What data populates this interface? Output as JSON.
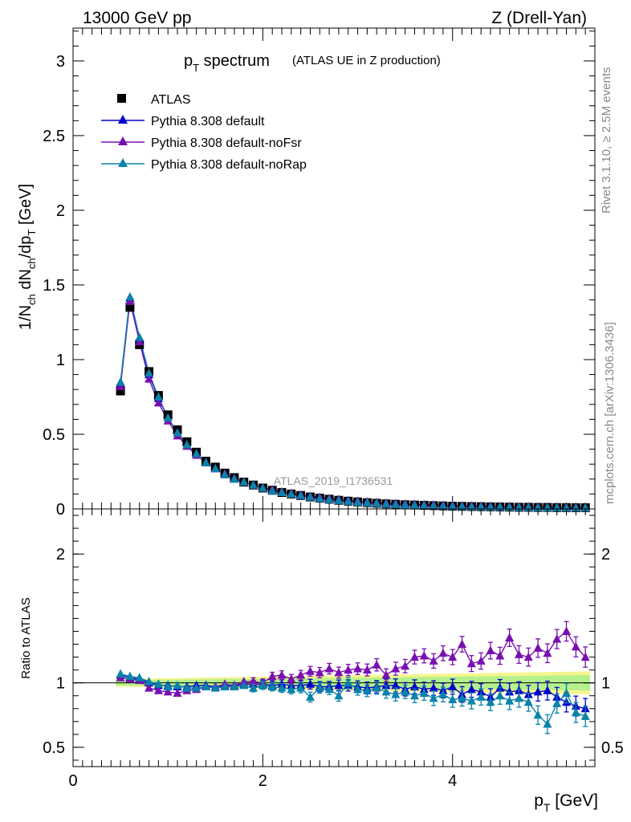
{
  "header": {
    "left": "13000 GeV pp",
    "right": "Z (Drell-Yan)"
  },
  "title": {
    "main": "p",
    "main_sub": "T",
    "main_rest": " spectrum",
    "small": "(ATLAS UE in Z production)"
  },
  "side_labels": {
    "top": "Rivet 3.1.10, ≥ 2.5M events",
    "bottom": "mcplots.cern.ch [arXiv:1306.3436]"
  },
  "watermark": "ATLAS_2019_I1736531",
  "colors": {
    "atlas": "#000000",
    "default": "#0000cc",
    "noFsr": "#7a0fb0",
    "noRap": "#0a82aa",
    "band_inner": "#b4f08c",
    "band_outer": "#f5f58c"
  },
  "chart_data": [
    {
      "type": "scatter",
      "ylabel": "1/N_ch dN_ch/dp_T [GeV]",
      "xlim": [
        0,
        5.5
      ],
      "ylim": [
        0,
        3.22
      ],
      "y_ticks": [
        0,
        0.5,
        1,
        1.5,
        2,
        2.5,
        3
      ],
      "legend_position": "top-left",
      "x": [
        0.5,
        0.6,
        0.7,
        0.8,
        0.9,
        1.0,
        1.1,
        1.2,
        1.3,
        1.4,
        1.5,
        1.6,
        1.7,
        1.8,
        1.9,
        2.0,
        2.1,
        2.2,
        2.3,
        2.4,
        2.5,
        2.6,
        2.7,
        2.8,
        2.9,
        3.0,
        3.1,
        3.2,
        3.3,
        3.4,
        3.5,
        3.6,
        3.7,
        3.8,
        3.9,
        4.0,
        4.1,
        4.2,
        4.3,
        4.4,
        4.5,
        4.6,
        4.7,
        4.8,
        4.9,
        5.0,
        5.1,
        5.2,
        5.3,
        5.4
      ],
      "series": [
        {
          "name": "ATLAS",
          "marker": "square",
          "values": [
            0.79,
            1.35,
            1.1,
            0.92,
            0.76,
            0.63,
            0.53,
            0.45,
            0.38,
            0.32,
            0.28,
            0.24,
            0.21,
            0.18,
            0.16,
            0.14,
            0.125,
            0.11,
            0.1,
            0.09,
            0.08,
            0.072,
            0.065,
            0.058,
            0.052,
            0.047,
            0.042,
            0.038,
            0.034,
            0.031,
            0.028,
            0.026,
            0.024,
            0.022,
            0.02,
            0.018,
            0.017,
            0.016,
            0.015,
            0.014,
            0.013,
            0.012,
            0.011,
            0.011,
            0.01,
            0.01,
            0.009,
            0.009,
            0.008,
            0.008
          ]
        },
        {
          "name": "Pythia 8.308 default",
          "marker": "triangle",
          "values": [
            0.84,
            1.41,
            1.14,
            0.9,
            0.74,
            0.61,
            0.51,
            0.43,
            0.37,
            0.31,
            0.27,
            0.23,
            0.2,
            0.18,
            0.16,
            0.14,
            0.12,
            0.11,
            0.1,
            0.09,
            0.08,
            0.07,
            0.063,
            0.057,
            0.051,
            0.046,
            0.041,
            0.037,
            0.033,
            0.03,
            0.027,
            0.025,
            0.023,
            0.021,
            0.019,
            0.017,
            0.016,
            0.015,
            0.014,
            0.013,
            0.012,
            0.011,
            0.01,
            0.01,
            0.009,
            0.009,
            0.008,
            0.008,
            0.007,
            0.007
          ]
        },
        {
          "name": "Pythia 8.308 default-noFsr",
          "marker": "triangle",
          "values": [
            0.82,
            1.39,
            1.12,
            0.87,
            0.71,
            0.59,
            0.49,
            0.42,
            0.36,
            0.31,
            0.27,
            0.235,
            0.205,
            0.18,
            0.16,
            0.14,
            0.13,
            0.115,
            0.105,
            0.095,
            0.085,
            0.078,
            0.07,
            0.063,
            0.057,
            0.052,
            0.047,
            0.043,
            0.039,
            0.036,
            0.033,
            0.031,
            0.029,
            0.027,
            0.025,
            0.023,
            0.021,
            0.02,
            0.019,
            0.018,
            0.017,
            0.016,
            0.015,
            0.014,
            0.013,
            0.013,
            0.012,
            0.011,
            0.011,
            0.01
          ]
        },
        {
          "name": "Pythia 8.308 default-noRap",
          "marker": "triangle",
          "values": [
            0.85,
            1.42,
            1.15,
            0.91,
            0.75,
            0.61,
            0.51,
            0.43,
            0.37,
            0.31,
            0.27,
            0.23,
            0.2,
            0.18,
            0.16,
            0.14,
            0.12,
            0.11,
            0.1,
            0.09,
            0.08,
            0.07,
            0.063,
            0.057,
            0.051,
            0.046,
            0.041,
            0.037,
            0.033,
            0.03,
            0.027,
            0.025,
            0.023,
            0.021,
            0.019,
            0.017,
            0.016,
            0.015,
            0.014,
            0.013,
            0.012,
            0.011,
            0.01,
            0.01,
            0.009,
            0.008,
            0.008,
            0.008,
            0.007,
            0.007
          ]
        }
      ]
    },
    {
      "type": "line",
      "xlabel": "p_T [GeV]",
      "ylabel": "Ratio to ATLAS",
      "xlim": [
        0,
        5.5
      ],
      "ylim": [
        0.35,
        2.35
      ],
      "x_ticks": [
        0,
        2,
        4
      ],
      "y_ticks": [
        0.5,
        1,
        2
      ],
      "x": [
        0.5,
        0.6,
        0.7,
        0.8,
        0.9,
        1.0,
        1.1,
        1.2,
        1.3,
        1.4,
        1.5,
        1.6,
        1.7,
        1.8,
        1.9,
        2.0,
        2.1,
        2.2,
        2.3,
        2.4,
        2.5,
        2.6,
        2.7,
        2.8,
        2.9,
        3.0,
        3.1,
        3.2,
        3.3,
        3.4,
        3.5,
        3.6,
        3.7,
        3.8,
        3.9,
        4.0,
        4.1,
        4.2,
        4.3,
        4.4,
        4.5,
        4.6,
        4.7,
        4.8,
        4.9,
        5.0,
        5.1,
        5.2,
        5.3,
        5.4
      ],
      "series": [
        {
          "name": "Pythia 8.308 default",
          "values": [
            1.06,
            1.04,
            1.03,
            1.0,
            0.98,
            0.98,
            0.97,
            0.97,
            0.98,
            0.98,
            0.97,
            0.98,
            0.98,
            0.99,
            0.99,
            0.99,
            0.98,
            0.99,
            0.98,
            0.98,
            0.99,
            0.97,
            0.97,
            0.98,
            0.98,
            0.97,
            0.96,
            0.97,
            0.98,
            0.98,
            0.95,
            0.97,
            0.95,
            0.96,
            0.94,
            0.97,
            0.91,
            0.95,
            0.93,
            0.89,
            0.96,
            0.93,
            0.94,
            0.91,
            0.93,
            0.94,
            0.89,
            0.85,
            0.82,
            0.8
          ]
        },
        {
          "name": "Pythia 8.308 default-noFsr",
          "values": [
            1.04,
            1.03,
            1.02,
            0.96,
            0.94,
            0.93,
            0.92,
            0.94,
            0.95,
            0.97,
            0.97,
            0.99,
            0.98,
            1.01,
            1.01,
            1.0,
            1.05,
            1.06,
            1.03,
            1.06,
            1.09,
            1.08,
            1.11,
            1.08,
            1.1,
            1.11,
            1.1,
            1.14,
            1.06,
            1.11,
            1.13,
            1.2,
            1.21,
            1.17,
            1.23,
            1.2,
            1.3,
            1.15,
            1.17,
            1.25,
            1.21,
            1.35,
            1.22,
            1.2,
            1.27,
            1.23,
            1.34,
            1.4,
            1.28,
            1.2
          ]
        },
        {
          "name": "Pythia 8.308 default-noRap",
          "values": [
            1.07,
            1.05,
            1.04,
            1.01,
            0.99,
            0.97,
            0.98,
            0.96,
            0.96,
            0.97,
            0.96,
            0.97,
            0.97,
            0.98,
            0.96,
            0.98,
            0.97,
            0.96,
            0.95,
            0.96,
            0.89,
            0.96,
            0.95,
            0.9,
            1.0,
            0.95,
            0.94,
            0.96,
            0.93,
            0.91,
            0.93,
            0.9,
            0.92,
            0.88,
            0.91,
            0.87,
            0.88,
            0.86,
            0.89,
            0.85,
            0.9,
            0.86,
            0.88,
            0.85,
            0.75,
            0.68,
            0.84,
            0.92,
            0.77,
            0.74
          ]
        }
      ]
    }
  ]
}
